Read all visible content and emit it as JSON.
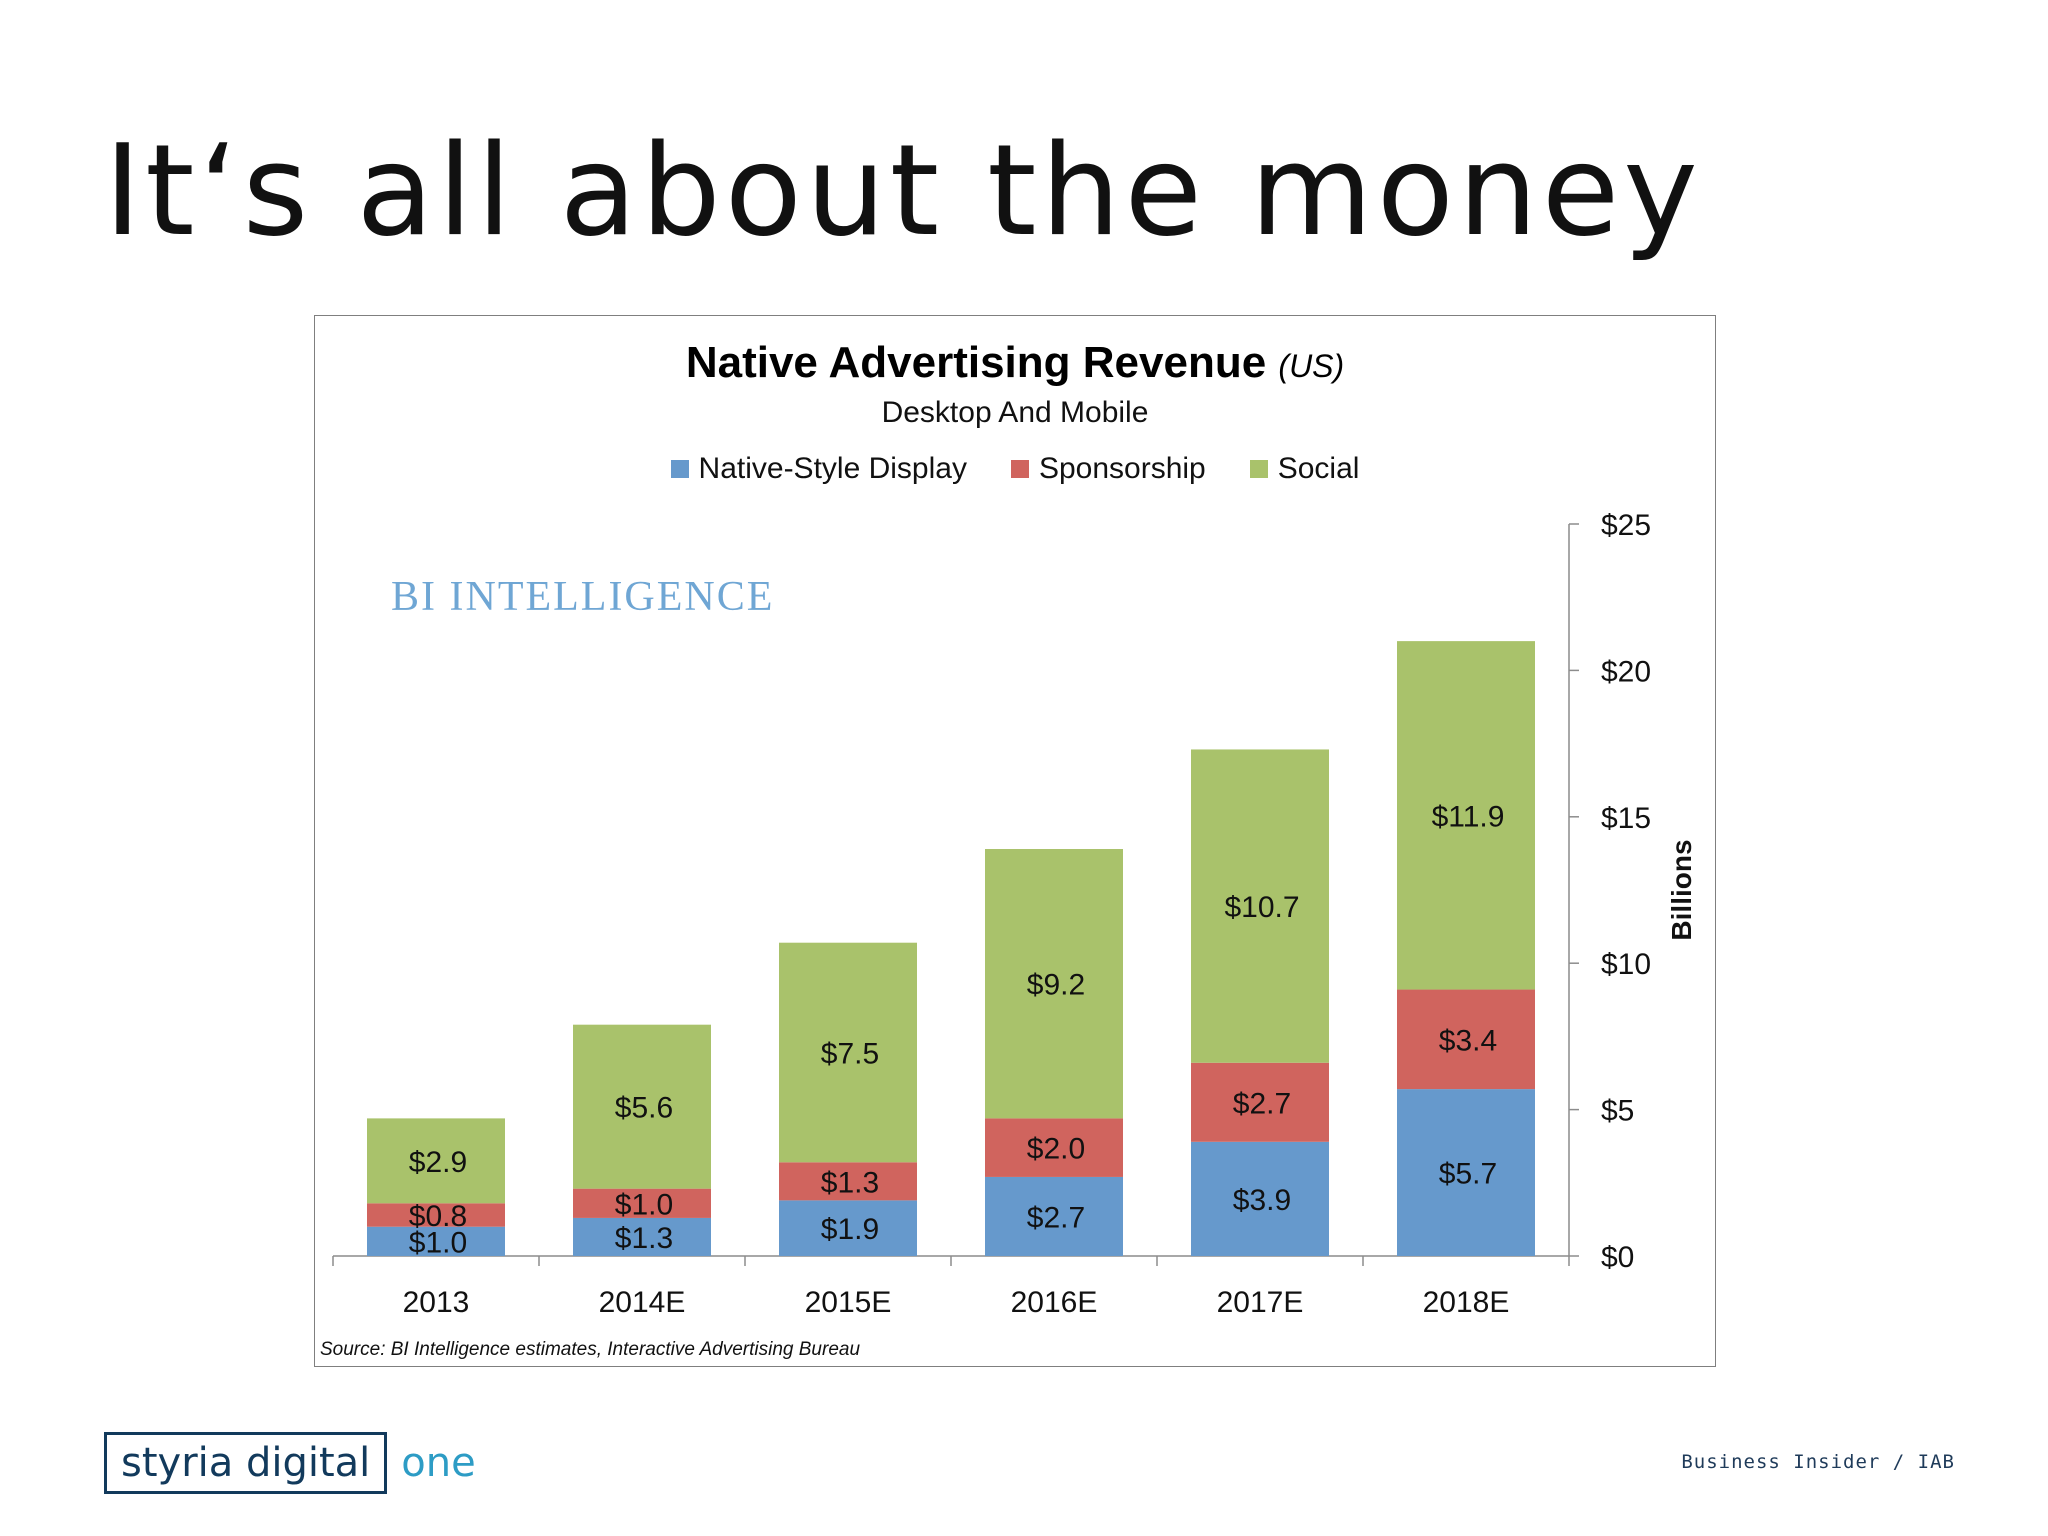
{
  "slide": {
    "title": "It‘s all about the money",
    "credit": "Business Insider / IAB",
    "brand_main": "styria digital",
    "brand_suffix": "one"
  },
  "watermark": "BI INTELLIGENCE",
  "colors": {
    "native_style_display": "#6699cc",
    "sponsorship": "#d0645e",
    "social": "#a9c26b",
    "brand": "#123a5c",
    "brand_accent": "#2d9cc5"
  },
  "chart_data": {
    "type": "bar",
    "stacked": true,
    "title": "Native Advertising Revenue",
    "title_region": "(US)",
    "subtitle": "Desktop And Mobile",
    "ylabel": "Billions",
    "y_axis_side": "right",
    "ylim": [
      0,
      25
    ],
    "yticks": [
      0,
      5,
      10,
      15,
      20,
      25
    ],
    "ytick_labels": [
      "$0",
      "$5",
      "$10",
      "$15",
      "$20",
      "$25"
    ],
    "grid": false,
    "legend_position": "top",
    "categories": [
      "2013",
      "2014E",
      "2015E",
      "2016E",
      "2017E",
      "2018E"
    ],
    "series": [
      {
        "name": "Native-Style Display",
        "values": [
          1.0,
          1.3,
          1.9,
          2.7,
          3.9,
          5.7
        ],
        "labels": [
          "$1.0",
          "$1.3",
          "$1.9",
          "$2.7",
          "$3.9",
          "$5.7"
        ]
      },
      {
        "name": "Sponsorship",
        "values": [
          0.8,
          1.0,
          1.3,
          2.0,
          2.7,
          3.4
        ],
        "labels": [
          "$0.8",
          "$1.0",
          "$1.3",
          "$2.0",
          "$2.7",
          "$3.4"
        ]
      },
      {
        "name": "Social",
        "values": [
          2.9,
          5.6,
          7.5,
          9.2,
          10.7,
          11.9
        ],
        "labels": [
          "$2.9",
          "$5.6",
          "$7.5",
          "$9.2",
          "$10.7",
          "$11.9"
        ]
      }
    ],
    "source": "Source: BI Intelligence estimates, Interactive Advertising Bureau"
  }
}
